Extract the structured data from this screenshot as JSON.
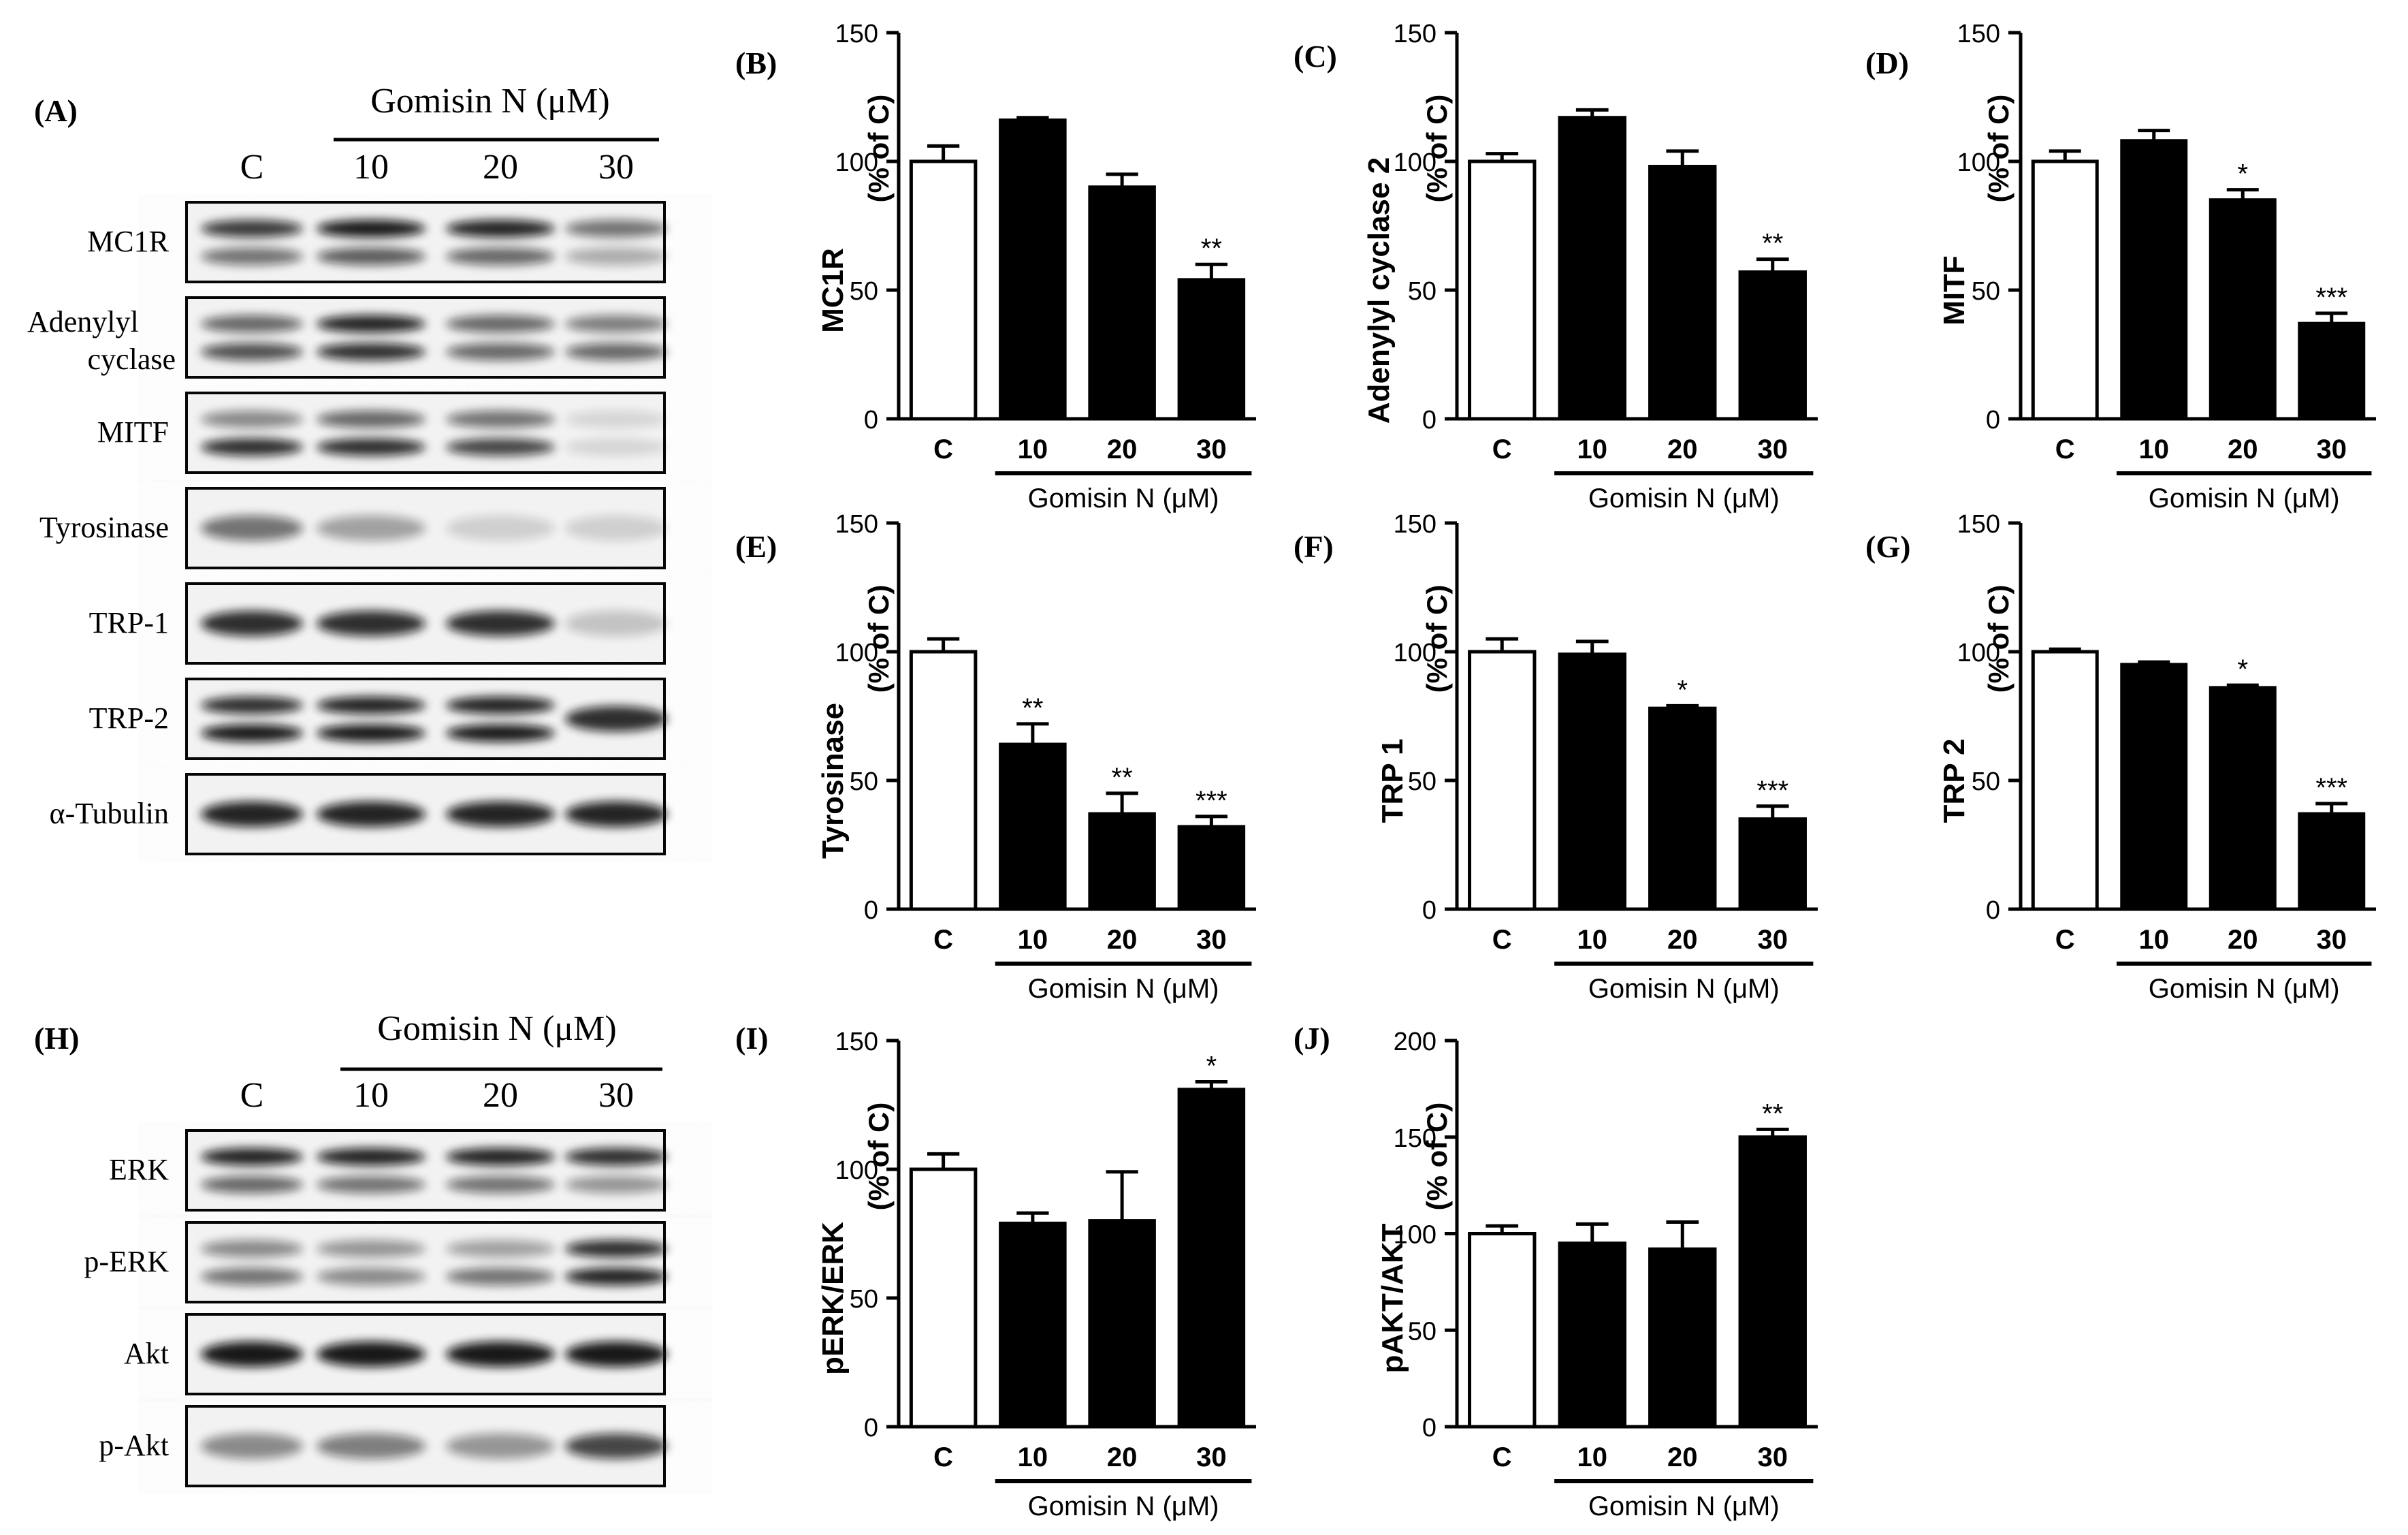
{
  "blot_panels": [
    {
      "letter": "(A)",
      "treatment_label": "Gomisin N (μM)",
      "lanes": [
        "C",
        "10",
        "20",
        "30"
      ],
      "rows": [
        {
          "label": "MC1R",
          "bands": [
            [
              0.8,
              0.55
            ],
            [
              0.95,
              0.65
            ],
            [
              0.9,
              0.6
            ],
            [
              0.55,
              0.3
            ]
          ]
        },
        {
          "label": [
            "Adenylyl",
            "cyclase"
          ],
          "bands": [
            [
              0.6,
              0.7
            ],
            [
              0.9,
              0.85
            ],
            [
              0.6,
              0.6
            ],
            [
              0.5,
              0.6
            ]
          ]
        },
        {
          "label": "MITF",
          "bands": [
            [
              0.45,
              0.85
            ],
            [
              0.6,
              0.85
            ],
            [
              0.55,
              0.75
            ],
            [
              0.12,
              0.12
            ]
          ]
        },
        {
          "label": "Tyrosinase",
          "bands": [
            [
              0.55
            ],
            [
              0.35
            ],
            [
              0.15
            ],
            [
              0.15
            ]
          ]
        },
        {
          "label": "TRP-1",
          "bands": [
            [
              0.85
            ],
            [
              0.85
            ],
            [
              0.85
            ],
            [
              0.2
            ]
          ]
        },
        {
          "label": "TRP-2",
          "bands": [
            [
              0.85,
              0.95
            ],
            [
              0.9,
              0.95
            ],
            [
              0.9,
              0.95
            ],
            [
              0.85
            ]
          ]
        },
        {
          "label": "α-Tubulin",
          "bands": [
            [
              0.9
            ],
            [
              0.9
            ],
            [
              0.9
            ],
            [
              0.9
            ]
          ]
        }
      ]
    },
    {
      "letter": "(H)",
      "treatment_label": "Gomisin N (μM)",
      "lanes": [
        "C",
        "10",
        "20",
        "30"
      ],
      "rows": [
        {
          "label": "ERK",
          "bands": [
            [
              0.9,
              0.6
            ],
            [
              0.9,
              0.55
            ],
            [
              0.9,
              0.55
            ],
            [
              0.85,
              0.4
            ]
          ]
        },
        {
          "label": "p-ERK",
          "bands": [
            [
              0.45,
              0.55
            ],
            [
              0.4,
              0.45
            ],
            [
              0.35,
              0.55
            ],
            [
              0.85,
              0.9
            ]
          ]
        },
        {
          "label": "Akt",
          "bands": [
            [
              0.95
            ],
            [
              0.95
            ],
            [
              0.95
            ],
            [
              0.95
            ]
          ]
        },
        {
          "label": "p-Akt",
          "bands": [
            [
              0.45
            ],
            [
              0.5
            ],
            [
              0.4
            ],
            [
              0.75
            ]
          ]
        }
      ]
    }
  ],
  "chart_data": [
    {
      "letter": "(B)",
      "type": "bar",
      "ylabel": "MC1R",
      "ylabel2": "(% of C)",
      "categories": [
        "C",
        "10",
        "20",
        "30"
      ],
      "values": [
        100,
        116,
        90,
        54
      ],
      "errors": [
        6,
        1,
        5,
        6
      ],
      "significance": [
        "",
        "",
        "",
        "**"
      ],
      "ylim": [
        0,
        150
      ],
      "yticks": [
        0,
        50,
        100,
        150
      ],
      "xlabel": "Gomisin N (μM)"
    },
    {
      "letter": "(C)",
      "type": "bar",
      "ylabel": "Adenylyl cyclase 2",
      "ylabel2": "(% of C)",
      "categories": [
        "C",
        "10",
        "20",
        "30"
      ],
      "values": [
        100,
        117,
        98,
        57
      ],
      "errors": [
        3,
        3,
        6,
        5
      ],
      "significance": [
        "",
        "",
        "",
        "**"
      ],
      "ylim": [
        0,
        150
      ],
      "yticks": [
        0,
        50,
        100,
        150
      ],
      "xlabel": "Gomisin N (μM)"
    },
    {
      "letter": "(D)",
      "type": "bar",
      "ylabel": "MITF",
      "ylabel2": "(% of C)",
      "categories": [
        "C",
        "10",
        "20",
        "30"
      ],
      "values": [
        100,
        108,
        85,
        37
      ],
      "errors": [
        4,
        4,
        4,
        4
      ],
      "significance": [
        "",
        "",
        "*",
        "***"
      ],
      "ylim": [
        0,
        150
      ],
      "yticks": [
        0,
        50,
        100,
        150
      ],
      "xlabel": "Gomisin N (μM)"
    },
    {
      "letter": "(E)",
      "type": "bar",
      "ylabel": "Tyrosinase",
      "ylabel2": "(% of C)",
      "categories": [
        "C",
        "10",
        "20",
        "30"
      ],
      "values": [
        100,
        64,
        37,
        32
      ],
      "errors": [
        5,
        8,
        8,
        4
      ],
      "significance": [
        "",
        "**",
        "**",
        "***"
      ],
      "ylim": [
        0,
        150
      ],
      "yticks": [
        0,
        50,
        100,
        150
      ],
      "xlabel": "Gomisin N (μM)"
    },
    {
      "letter": "(F)",
      "type": "bar",
      "ylabel": "TRP 1",
      "ylabel2": "(% of C)",
      "categories": [
        "C",
        "10",
        "20",
        "30"
      ],
      "values": [
        100,
        99,
        78,
        35
      ],
      "errors": [
        5,
        5,
        1,
        5
      ],
      "significance": [
        "",
        "",
        "*",
        "***"
      ],
      "ylim": [
        0,
        150
      ],
      "yticks": [
        0,
        50,
        100,
        150
      ],
      "xlabel": "Gomisin N (μM)"
    },
    {
      "letter": "(G)",
      "type": "bar",
      "ylabel": "TRP 2",
      "ylabel2": "(% of C)",
      "categories": [
        "C",
        "10",
        "20",
        "30"
      ],
      "values": [
        100,
        95,
        86,
        37
      ],
      "errors": [
        1,
        1,
        1,
        4
      ],
      "significance": [
        "",
        "",
        "*",
        "***"
      ],
      "ylim": [
        0,
        150
      ],
      "yticks": [
        0,
        50,
        100,
        150
      ],
      "xlabel": "Gomisin N (μM)"
    },
    {
      "letter": "(I)",
      "type": "bar",
      "ylabel": "pERK/ERK",
      "ylabel2": "(% of C)",
      "categories": [
        "C",
        "10",
        "20",
        "30"
      ],
      "values": [
        100,
        79,
        80,
        131
      ],
      "errors": [
        6,
        4,
        19,
        3
      ],
      "significance": [
        "",
        "",
        "",
        "*"
      ],
      "ylim": [
        0,
        150
      ],
      "yticks": [
        0,
        50,
        100,
        150
      ],
      "xlabel": "Gomisin N (μM)"
    },
    {
      "letter": "(J)",
      "type": "bar",
      "ylabel": "pAKT/AKT",
      "ylabel2": "(% of C)",
      "categories": [
        "C",
        "10",
        "20",
        "30"
      ],
      "values": [
        100,
        95,
        92,
        150
      ],
      "errors": [
        4,
        10,
        14,
        4
      ],
      "significance": [
        "",
        "",
        "",
        "**"
      ],
      "ylim": [
        0,
        200
      ],
      "yticks": [
        0,
        50,
        100,
        150,
        200
      ],
      "xlabel": "Gomisin N (μM)"
    }
  ],
  "colors": {
    "control_bar": "#ffffff",
    "treated_bar": "#000000",
    "axis": "#000000",
    "blot_background": "#f4f4f4",
    "band": "#111111"
  }
}
